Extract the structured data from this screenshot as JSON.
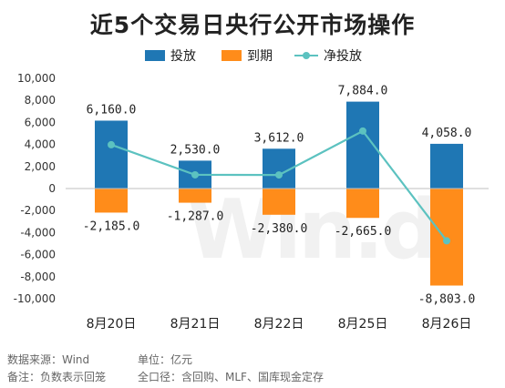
{
  "title": "近5个交易日央行公开市场操作",
  "colors": {
    "inject": "#1f77b4",
    "expire": "#ff8c1a",
    "net": "#5cc2c0"
  },
  "legend": {
    "inject": "投放",
    "expire": "到期",
    "net": "净投放"
  },
  "chart_data": {
    "type": "bar",
    "title": "近5个交易日央行公开市场操作",
    "categories": [
      "8月20日",
      "8月21日",
      "8月22日",
      "8月25日",
      "8月26日"
    ],
    "series": [
      {
        "name": "投放",
        "type": "bar",
        "values": [
          6160.0,
          2530.0,
          3612.0,
          7884.0,
          4058.0
        ],
        "labels": [
          "6,160.0",
          "2,530.0",
          "3,612.0",
          "7,884.0",
          "4,058.0"
        ]
      },
      {
        "name": "到期",
        "type": "bar",
        "values": [
          -2185.0,
          -1287.0,
          -2380.0,
          -2665.0,
          -8803.0
        ],
        "labels": [
          "-2,185.0",
          "-1,287.0",
          "-2,380.0",
          "-2,665.0",
          "-8,803.0"
        ]
      },
      {
        "name": "净投放",
        "type": "line",
        "values": [
          3975.0,
          1243.0,
          1232.0,
          5219.0,
          -4745.0
        ]
      }
    ],
    "ylim": [
      -10000,
      10000
    ],
    "yticks": [
      10000,
      8000,
      6000,
      4000,
      2000,
      0,
      -2000,
      -4000,
      -6000,
      -8000,
      -10000
    ],
    "ytick_labels": [
      "10,000",
      "8,000",
      "6,000",
      "4,000",
      "2,000",
      "0",
      "-2,000",
      "-4,000",
      "-6,000",
      "-8,000",
      "-10,000"
    ],
    "legend_position": "top-center",
    "grid": false
  },
  "footnotes": {
    "source": "数据来源：Wind",
    "unit": "单位：亿元",
    "note": "备注：负数表示回笼",
    "scope": "全口径：含回购、MLF、国库现金定存"
  },
  "watermark": "Win.d"
}
